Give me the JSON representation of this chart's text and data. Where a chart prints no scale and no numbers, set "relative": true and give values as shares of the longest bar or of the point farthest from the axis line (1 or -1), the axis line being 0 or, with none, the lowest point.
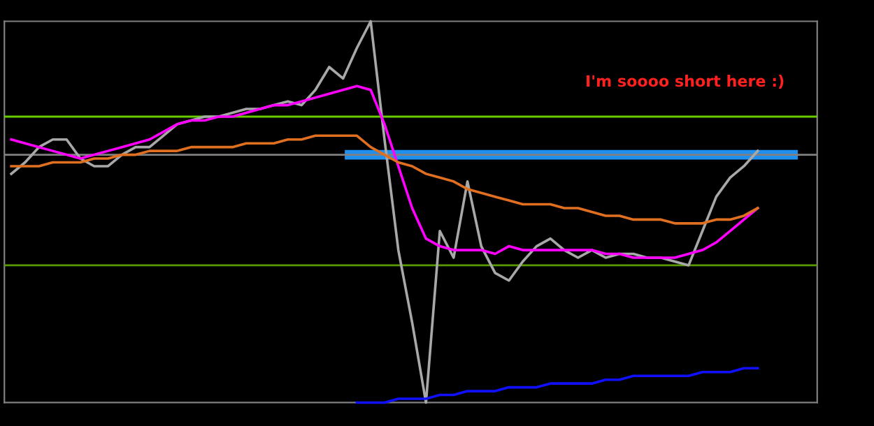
{
  "chart_data": {
    "type": "line",
    "relative": true,
    "legend": false,
    "grid": false,
    "categories": [
      null,
      null,
      null,
      null,
      null,
      null,
      null,
      null,
      null,
      null,
      null,
      null,
      null,
      null,
      null,
      null,
      null,
      null,
      null,
      null,
      null,
      null,
      null,
      null,
      null,
      null,
      null,
      null,
      null,
      null,
      null,
      null,
      null,
      null,
      null,
      null,
      null,
      null,
      null,
      null,
      null,
      null,
      null,
      null,
      null,
      null,
      null,
      null,
      null,
      null,
      null,
      null,
      null,
      null,
      null
    ],
    "series": [
      {
        "color": "#a8a8a8",
        "values": [
          0.6,
          0.63,
          0.67,
          0.69,
          0.69,
          0.64,
          0.62,
          0.62,
          0.65,
          0.67,
          0.67,
          0.7,
          0.73,
          0.74,
          0.75,
          0.75,
          0.76,
          0.77,
          0.77,
          0.78,
          0.79,
          0.78,
          0.82,
          0.88,
          0.85,
          0.93,
          1.0,
          0.69,
          0.4,
          0.21,
          0,
          0.45,
          0.38,
          0.58,
          0.41,
          0.34,
          0.32,
          0.37,
          0.41,
          0.43,
          0.4,
          0.38,
          0.4,
          0.38,
          0.39,
          0.39,
          0.38,
          0.38,
          0.37,
          0.36,
          0.45,
          0.54,
          0.59,
          0.62,
          0.66
        ]
      },
      {
        "color": "#ff00ff",
        "values": [
          0.69,
          0.68,
          0.67,
          0.66,
          0.65,
          0.64,
          0.65,
          0.66,
          0.67,
          0.68,
          0.69,
          0.71,
          0.73,
          0.74,
          0.74,
          0.75,
          0.75,
          0.76,
          0.77,
          0.78,
          0.78,
          0.79,
          0.8,
          0.81,
          0.82,
          0.83,
          0.82,
          0.73,
          0.62,
          0.51,
          0.43,
          0.41,
          0.4,
          0.4,
          0.4,
          0.39,
          0.41,
          0.4,
          0.4,
          0.4,
          0.4,
          0.4,
          0.4,
          0.39,
          0.39,
          0.38,
          0.38,
          0.38,
          0.38,
          0.39,
          0.4,
          0.42,
          0.45,
          0.48,
          0.51
        ]
      },
      {
        "color": "#e07020",
        "values": [
          0.62,
          0.62,
          0.62,
          0.63,
          0.63,
          0.63,
          0.64,
          0.64,
          0.65,
          0.65,
          0.66,
          0.66,
          0.66,
          0.67,
          0.67,
          0.67,
          0.67,
          0.68,
          0.68,
          0.68,
          0.69,
          0.69,
          0.7,
          0.7,
          0.7,
          0.7,
          0.67,
          0.65,
          0.63,
          0.62,
          0.6,
          0.59,
          0.58,
          0.56,
          0.55,
          0.54,
          0.53,
          0.52,
          0.52,
          0.52,
          0.51,
          0.51,
          0.5,
          0.49,
          0.49,
          0.48,
          0.48,
          0.48,
          0.47,
          0.47,
          0.47,
          0.48,
          0.48,
          0.49,
          0.51
        ]
      },
      {
        "color": "#1010ff",
        "values": [
          null,
          null,
          null,
          null,
          null,
          null,
          null,
          null,
          null,
          null,
          null,
          null,
          null,
          null,
          null,
          null,
          null,
          null,
          null,
          null,
          null,
          null,
          null,
          null,
          null,
          0,
          0,
          0,
          0.01,
          0.01,
          0.01,
          0.02,
          0.02,
          0.03,
          0.03,
          0.03,
          0.04,
          0.04,
          0.04,
          0.05,
          0.05,
          0.05,
          0.05,
          0.06,
          0.06,
          0.07,
          0.07,
          0.07,
          0.07,
          0.07,
          0.08,
          0.08,
          0.08,
          0.09,
          0.09
        ]
      }
    ],
    "ref_lines": [
      {
        "axis": "y",
        "value": 0.75,
        "color": "#66cc00"
      },
      {
        "axis": "y",
        "value": 0.65,
        "color": "#808080"
      },
      {
        "axis": "y",
        "value": 0.36,
        "color": "#5a9900"
      }
    ],
    "bands": [
      {
        "axis": "y",
        "from": 0.64,
        "to": 0.66,
        "color": "#2090f0"
      }
    ],
    "annotations": [
      "I'm soooo short here :)"
    ]
  }
}
